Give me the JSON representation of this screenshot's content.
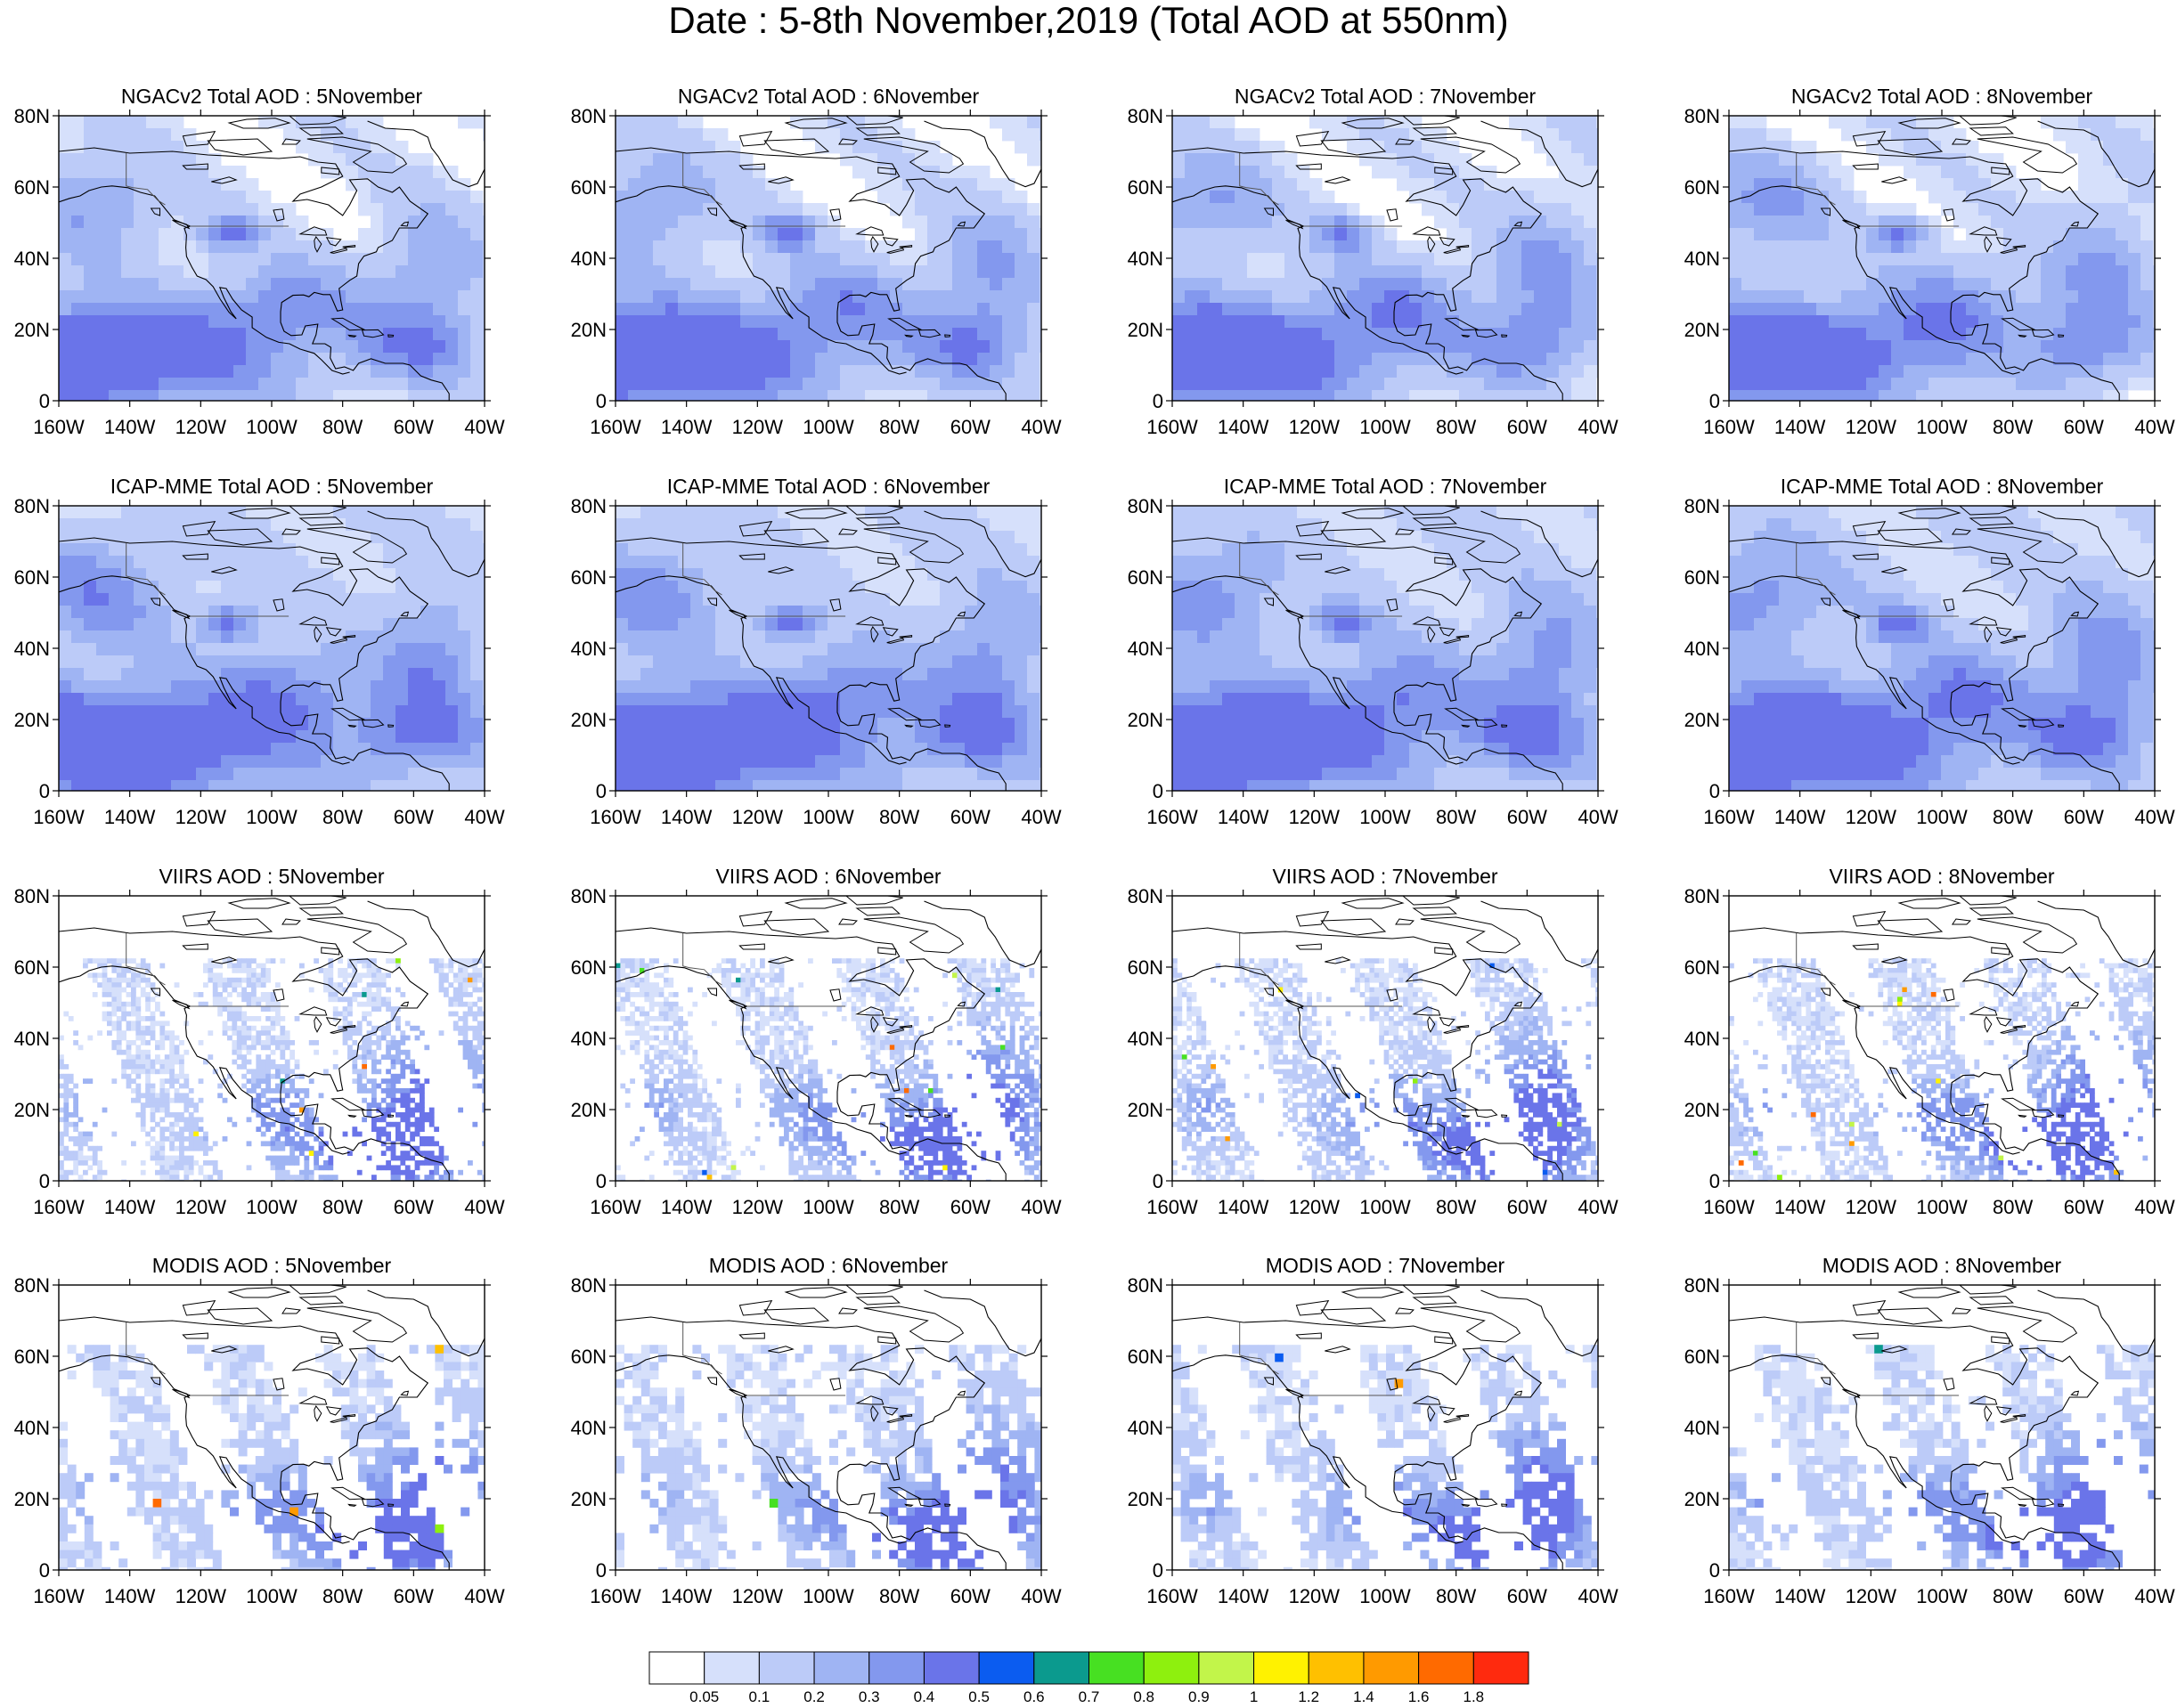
{
  "title": "Date : 5-8th November,2019 (Total AOD at 550nm)",
  "panels": [
    {
      "row": 0,
      "col": 0,
      "title": "NGACv2 Total AOD : 5November"
    },
    {
      "row": 0,
      "col": 1,
      "title": "NGACv2 Total AOD : 6November"
    },
    {
      "row": 0,
      "col": 2,
      "title": "NGACv2 Total AOD : 7November"
    },
    {
      "row": 0,
      "col": 3,
      "title": "NGACv2 Total AOD : 8November"
    },
    {
      "row": 1,
      "col": 0,
      "title": "ICAP-MME Total AOD : 5November"
    },
    {
      "row": 1,
      "col": 1,
      "title": "ICAP-MME Total AOD : 6November"
    },
    {
      "row": 1,
      "col": 2,
      "title": "ICAP-MME Total AOD : 7November"
    },
    {
      "row": 1,
      "col": 3,
      "title": "ICAP-MME Total AOD : 8November"
    },
    {
      "row": 2,
      "col": 0,
      "title": "VIIRS AOD : 5November"
    },
    {
      "row": 2,
      "col": 1,
      "title": "VIIRS AOD : 6November"
    },
    {
      "row": 2,
      "col": 2,
      "title": "VIIRS AOD : 7November"
    },
    {
      "row": 2,
      "col": 3,
      "title": "VIIRS AOD : 8November"
    },
    {
      "row": 3,
      "col": 0,
      "title": "MODIS AOD : 5November"
    },
    {
      "row": 3,
      "col": 1,
      "title": "MODIS AOD : 6November"
    },
    {
      "row": 3,
      "col": 2,
      "title": "MODIS AOD : 7November"
    },
    {
      "row": 3,
      "col": 3,
      "title": "MODIS AOD : 8November"
    }
  ],
  "lat_ticks": [
    "80N",
    "60N",
    "40N",
    "20N",
    "0"
  ],
  "lon_ticks": [
    "160W",
    "140W",
    "120W",
    "100W",
    "80W",
    "60W",
    "40W"
  ],
  "colorbar": {
    "colors": [
      "#ffffff",
      "#d6e0fb",
      "#bccbf8",
      "#9fb4f3",
      "#8398ee",
      "#6a74e9",
      "#0b5cf0",
      "#0b9a8e",
      "#47e022",
      "#8ef00e",
      "#c2f54a",
      "#fff200",
      "#ffc000",
      "#ff9a00",
      "#ff6a00",
      "#ff2a0e"
    ],
    "labels": [
      "0.05",
      "0.1",
      "0.2",
      "0.3",
      "0.4",
      "0.5",
      "0.6",
      "0.7",
      "0.8",
      "0.9",
      "1",
      "1.2",
      "1.4",
      "1.6",
      "1.8"
    ]
  }
}
